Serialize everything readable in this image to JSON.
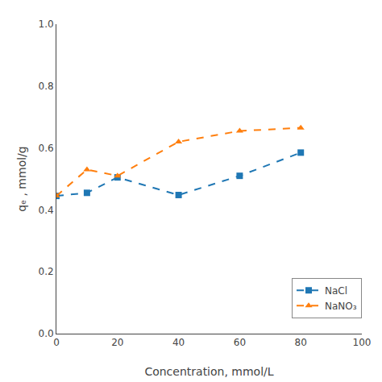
{
  "chart_data": {
    "type": "line",
    "x": [
      0,
      10,
      20,
      40,
      60,
      80
    ],
    "series": [
      {
        "name": "NaCl",
        "marker": "square",
        "line_style": "dash",
        "values": [
          0.445,
          0.455,
          0.505,
          0.448,
          0.51,
          0.585
        ]
      },
      {
        "name": "NaNO₃",
        "marker": "triangle-up",
        "line_style": "dash",
        "values": [
          0.445,
          0.53,
          0.51,
          0.62,
          0.655,
          0.665
        ]
      }
    ],
    "x_label": "Concentration, mmol/L",
    "y_label": "qₑ , mmol/g",
    "xlim": [
      0,
      100
    ],
    "xticks": [
      0,
      20,
      40,
      60,
      80,
      100
    ],
    "ylim": [
      0.0,
      1.0
    ],
    "yticks": [
      {
        "value": 0,
        "label": "0.0"
      },
      0.2,
      0.4,
      0.6,
      0.8,
      {
        "value": 1,
        "label": "1.0"
      }
    ],
    "grid": false,
    "legend": "lower right"
  }
}
